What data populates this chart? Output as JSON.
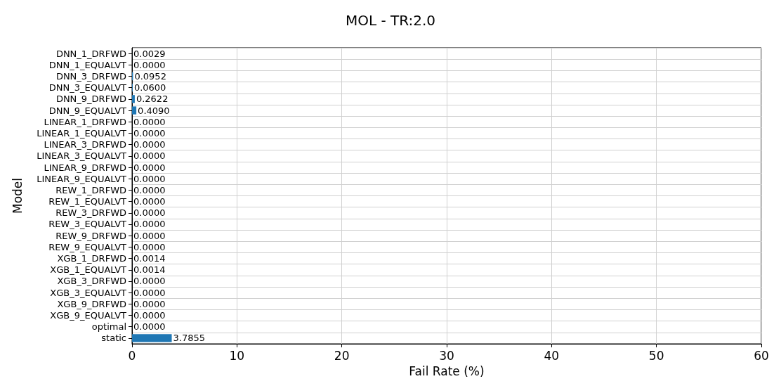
{
  "chart_data": {
    "type": "bar",
    "orientation": "horizontal",
    "title": "MOL - TR:2.0",
    "xlabel": "Fail Rate (%)",
    "ylabel": "Model",
    "categories": [
      "DNN_1_DRFWD",
      "DNN_1_EQUALVT",
      "DNN_3_DRFWD",
      "DNN_3_EQUALVT",
      "DNN_9_DRFWD",
      "DNN_9_EQUALVT",
      "LINEAR_1_DRFWD",
      "LINEAR_1_EQUALVT",
      "LINEAR_3_DRFWD",
      "LINEAR_3_EQUALVT",
      "LINEAR_9_DRFWD",
      "LINEAR_9_EQUALVT",
      "REW_1_DRFWD",
      "REW_1_EQUALVT",
      "REW_3_DRFWD",
      "REW_3_EQUALVT",
      "REW_9_DRFWD",
      "REW_9_EQUALVT",
      "XGB_1_DRFWD",
      "XGB_1_EQUALVT",
      "XGB_3_DRFWD",
      "XGB_3_EQUALVT",
      "XGB_9_DRFWD",
      "XGB_9_EQUALVT",
      "optimal",
      "static"
    ],
    "values": [
      0.0029,
      0,
      0.0952,
      0.06,
      0.2622,
      0.409,
      0,
      0,
      0,
      0,
      0,
      0,
      0,
      0,
      0,
      0,
      0,
      0,
      0.0014,
      0.0014,
      0,
      0,
      0,
      0,
      0,
      3.7855
    ],
    "value_labels": [
      "0.0029",
      "0.0000",
      "0.0952",
      "0.0600",
      "0.2622",
      "0.4090",
      "0.0000",
      "0.0000",
      "0.0000",
      "0.0000",
      "0.0000",
      "0.0000",
      "0.0000",
      "0.0000",
      "0.0000",
      "0.0000",
      "0.0000",
      "0.0000",
      "0.0014",
      "0.0014",
      "0.0000",
      "0.0000",
      "0.0000",
      "0.0000",
      "0.0000",
      "3.7855"
    ],
    "color": "#1f77b4",
    "xlim": [
      0,
      60
    ],
    "xticks": [
      0,
      10,
      20,
      30,
      40,
      50,
      60
    ],
    "grid": true
  }
}
